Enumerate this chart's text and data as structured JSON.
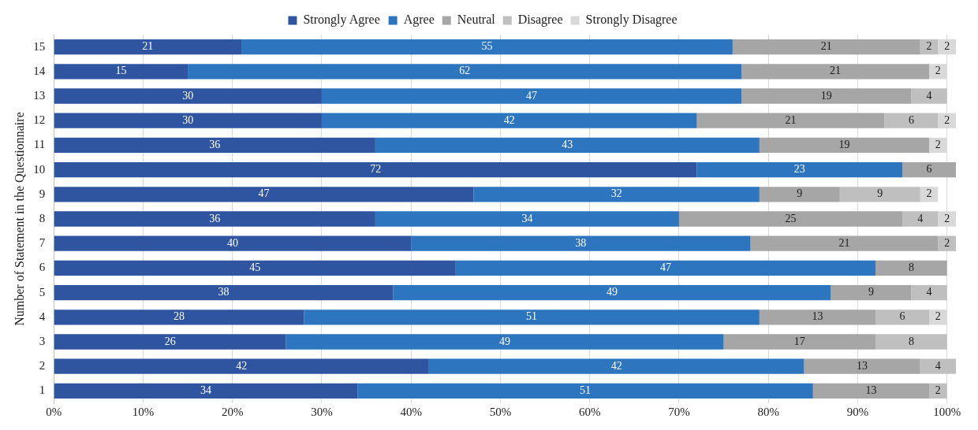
{
  "chart_data": {
    "type": "bar",
    "orientation": "horizontal",
    "stacked": true,
    "ylabel": "Number of Statement in the Questionnaire",
    "categories": [
      "15",
      "14",
      "13",
      "12",
      "11",
      "10",
      "9",
      "8",
      "7",
      "6",
      "5",
      "4",
      "3",
      "2",
      "1"
    ],
    "series": [
      {
        "name": "Strongly Agree",
        "color": "#2f55a0",
        "values": [
          21,
          15,
          30,
          30,
          36,
          72,
          47,
          36,
          40,
          45,
          38,
          28,
          26,
          42,
          34
        ]
      },
      {
        "name": "Agree",
        "color": "#2e75c0",
        "values": [
          55,
          62,
          47,
          42,
          43,
          23,
          32,
          34,
          38,
          47,
          49,
          51,
          49,
          42,
          51
        ]
      },
      {
        "name": "Neutral",
        "color": "#a6a6a6",
        "values": [
          21,
          21,
          19,
          21,
          19,
          6,
          9,
          25,
          21,
          8,
          9,
          13,
          17,
          13,
          13
        ]
      },
      {
        "name": "Disagree",
        "color": "#bfbfbf",
        "values": [
          2,
          null,
          4,
          6,
          null,
          null,
          9,
          4,
          2,
          null,
          4,
          6,
          8,
          4,
          2
        ]
      },
      {
        "name": "Strongly Disagree",
        "color": "#d9d9d9",
        "values": [
          2,
          2,
          null,
          2,
          2,
          null,
          2,
          2,
          null,
          null,
          null,
          2,
          null,
          null,
          null
        ]
      }
    ],
    "xlim": [
      0,
      101
    ],
    "xticks": [
      {
        "value": 0,
        "label": "0%"
      },
      {
        "value": 10,
        "label": "10%"
      },
      {
        "value": 20,
        "label": "20%"
      },
      {
        "value": 30,
        "label": "30%"
      },
      {
        "value": 40,
        "label": "40%"
      },
      {
        "value": 50,
        "label": "50%"
      },
      {
        "value": 60,
        "label": "60%"
      },
      {
        "value": 70,
        "label": "70%"
      },
      {
        "value": 80,
        "label": "80%"
      },
      {
        "value": 90,
        "label": "90%"
      },
      {
        "value": 100,
        "label": "100%"
      }
    ],
    "grid": "x",
    "legend": "top",
    "data_labels": true
  }
}
